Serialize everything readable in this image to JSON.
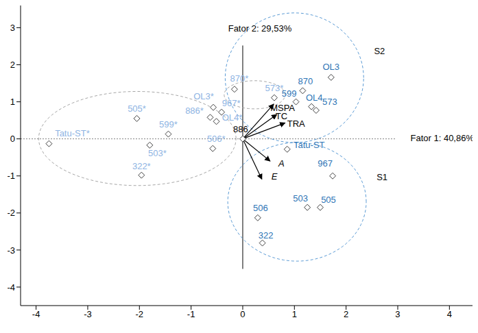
{
  "chart_data": {
    "type": "scatter",
    "x_label": "Fator 1: 40,86%",
    "y_label": "Fator 2: 29,53%",
    "xlim": [
      -4.3,
      4.5
    ],
    "ylim": [
      -4.5,
      3.6
    ],
    "xticks": [
      -4,
      -3,
      -2,
      -1,
      0,
      1,
      2,
      3,
      4
    ],
    "yticks": [
      -4,
      -3,
      -2,
      -1,
      0,
      1,
      2,
      3
    ],
    "grid": false,
    "series": [
      {
        "marker": "diamond",
        "color": "#8EB4E3",
        "points": [
          {
            "label": "Tatu-ST*",
            "x": -3.75,
            "y": -0.13
          },
          {
            "label": "505*",
            "x": -2.05,
            "y": 0.55
          },
          {
            "label": "599*",
            "x": -1.44,
            "y": 0.13
          },
          {
            "label": "503*",
            "x": -1.8,
            "y": -0.17
          },
          {
            "label": "322*",
            "x": -1.96,
            "y": -0.98
          },
          {
            "label": "OL3*",
            "x": -0.57,
            "y": 0.85
          },
          {
            "label": "967*",
            "x": -0.41,
            "y": 0.72
          },
          {
            "label": "886*",
            "x": -0.63,
            "y": 0.58
          },
          {
            "label": "OL4*",
            "x": -0.51,
            "y": 0.47
          },
          {
            "label": "506*",
            "x": -0.58,
            "y": -0.26
          },
          {
            "label": "870*",
            "x": -0.16,
            "y": 1.34
          },
          {
            "label": "573*",
            "x": 0.61,
            "y": 1.11
          }
        ]
      },
      {
        "marker": "diamond",
        "colors": [
          "#2E75B6",
          "#2E75B6",
          "#2E75B6",
          "#2E75B6",
          "#2E75B6",
          "#2E75B6",
          "#2E75B6",
          "#2E75B6",
          "#2E75B6",
          "#2E75B6",
          "#2E75B6",
          "#000000"
        ],
        "points": [
          {
            "label": "Tatu-ST",
            "x": 0.86,
            "y": -0.28
          },
          {
            "label": "967",
            "x": 1.74,
            "y": -1.0
          },
          {
            "label": "503",
            "x": 1.25,
            "y": -1.85
          },
          {
            "label": "505",
            "x": 1.5,
            "y": -1.85
          },
          {
            "label": "506",
            "x": 0.29,
            "y": -2.13
          },
          {
            "label": "322",
            "x": 0.38,
            "y": -2.81
          },
          {
            "label": "870",
            "x": 1.16,
            "y": 1.3
          },
          {
            "label": "OL3",
            "x": 1.71,
            "y": 1.66
          },
          {
            "label": "599",
            "x": 1.03,
            "y": 1.0
          },
          {
            "label": "OL4",
            "x": 1.33,
            "y": 0.87
          },
          {
            "label": "573",
            "x": 1.42,
            "y": 0.77
          },
          {
            "label": "886",
            "x": 0.0,
            "y": 0.0
          }
        ]
      },
      {
        "type": "vector",
        "color": "#000000",
        "points": [
          {
            "label": "MSPA",
            "x": 0.6,
            "y": 0.94
          },
          {
            "label": "TC",
            "x": 0.66,
            "y": 0.66
          },
          {
            "label": "TRA",
            "x": 0.82,
            "y": 0.43
          },
          {
            "label": "A",
            "x": 0.53,
            "y": -0.6
          },
          {
            "label": "E",
            "x": 0.37,
            "y": -1.09
          }
        ]
      }
    ],
    "groups": [
      {
        "color": "#A6A6A6",
        "line_style": "dashed",
        "cx": -2.04,
        "cy": 0.01,
        "rx": 1.91,
        "ry": 1.27
      },
      {
        "color": "#A6A6A6",
        "line_style": "dashed",
        "cx": 0.23,
        "cy": 1.19,
        "rx": 0.59,
        "ry": 0.38
      },
      {
        "label": "S2",
        "color": "#5B9BD5",
        "line_style": "dashed",
        "cx": 1.0,
        "cy": 1.65,
        "rx": 1.34,
        "ry": 1.75
      },
      {
        "label": "S1",
        "color": "#5B9BD5",
        "line_style": "dashed",
        "cx": 1.05,
        "cy": -1.7,
        "rx": 1.34,
        "ry": 1.6
      }
    ]
  }
}
